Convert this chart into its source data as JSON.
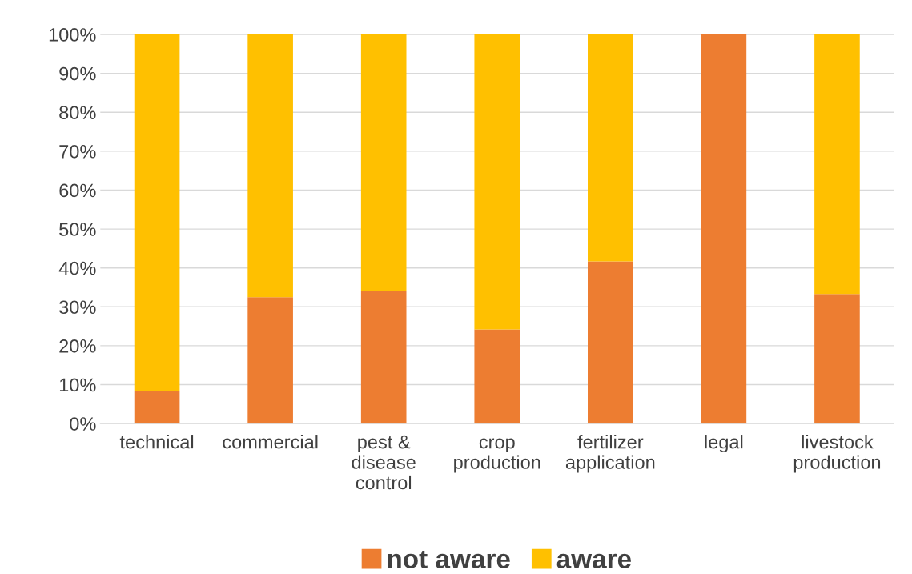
{
  "chart_data": {
    "type": "bar",
    "stacked": true,
    "categories": [
      "technical",
      "commercial",
      "pest &\ndisease\ncontrol",
      "crop\nproduction",
      "fertilizer\napplication",
      "legal",
      "livestock\nproduction"
    ],
    "series": [
      {
        "name": "not aware",
        "color": "#ed7d31",
        "values": [
          8.3,
          32.5,
          34.2,
          24.2,
          41.7,
          100,
          33.3
        ]
      },
      {
        "name": "aware",
        "color": "#ffc000",
        "values": [
          91.7,
          67.5,
          65.8,
          75.8,
          58.3,
          null,
          66.7
        ]
      }
    ],
    "ylim": [
      0,
      100
    ],
    "yticks": [
      {
        "value": 0,
        "label": "0%"
      },
      {
        "value": 10,
        "label": "10%"
      },
      {
        "value": 20,
        "label": "20%"
      },
      {
        "value": 30,
        "label": "30%"
      },
      {
        "value": 40,
        "label": "40%"
      },
      {
        "value": 50,
        "label": "50%"
      },
      {
        "value": 60,
        "label": "60%"
      },
      {
        "value": 70,
        "label": "70%"
      },
      {
        "value": 80,
        "label": "80%"
      },
      {
        "value": 90,
        "label": "90%"
      },
      {
        "value": 100,
        "label": "100%"
      }
    ],
    "grid": "y",
    "legend": "bottom"
  }
}
